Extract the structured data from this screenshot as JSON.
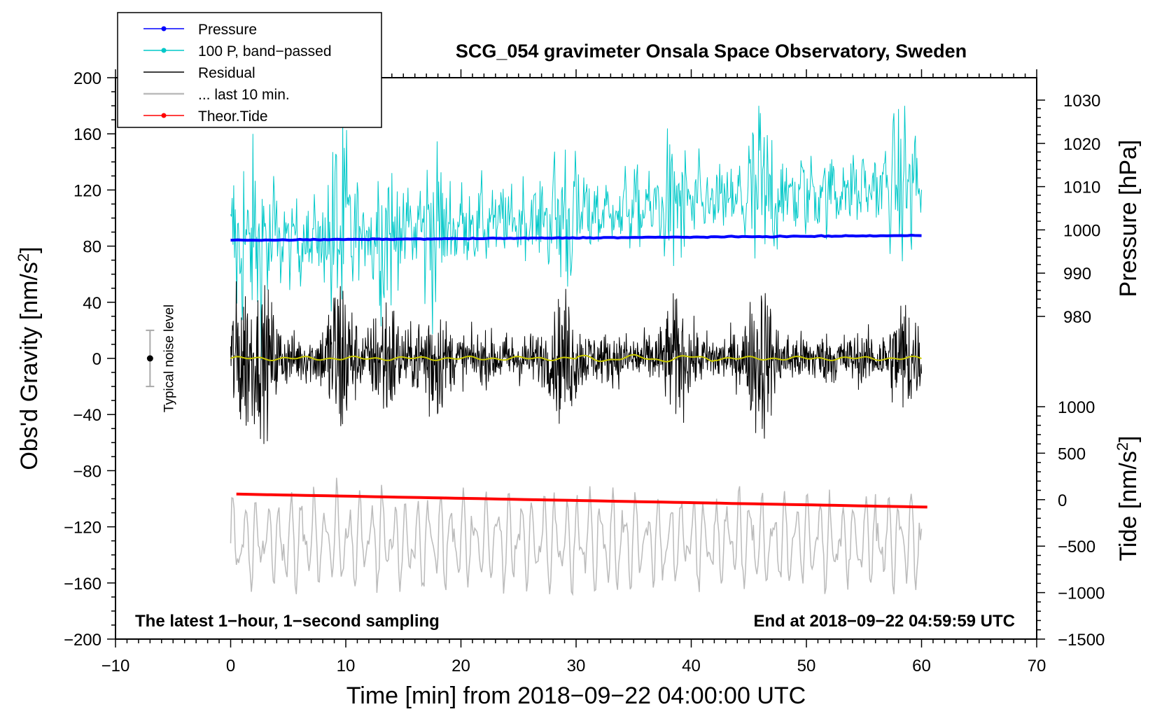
{
  "chart_data": {
    "type": "line",
    "title": "SCG_054 gravimeter Onsala Space Observatory, Sweden",
    "xlabel": "Time [min] from 2018−09−22 04:00:00 UTC",
    "ylabel_prefix": "Obs'd Gravity [nm/s",
    "ylabel_sup": "2",
    "ylabel_suffix": "]",
    "pressure_label": "Pressure [hPa]",
    "tide_label_prefix": "Tide [nm/s",
    "tide_label_sup": "2",
    "tide_label_suffix": "]",
    "xlim": [
      -10,
      70
    ],
    "ylim": [
      -200,
      200
    ],
    "pressure_lim": [
      980,
      1030
    ],
    "tide_lim": [
      -1500,
      1000
    ],
    "x_ticks": [
      -10,
      0,
      10,
      20,
      30,
      40,
      50,
      60,
      70
    ],
    "x_tick_labels": [
      "−10",
      "0",
      "10",
      "20",
      "30",
      "40",
      "50",
      "60",
      "70"
    ],
    "y_ticks": [
      -200,
      -160,
      -120,
      -80,
      -40,
      0,
      40,
      80,
      120,
      160,
      200
    ],
    "y_tick_labels": [
      "−200",
      "−160",
      "−120",
      "−80",
      "−40",
      "0",
      "40",
      "80",
      "120",
      "160",
      "200"
    ],
    "pressure_ticks": [
      980,
      990,
      1000,
      1010,
      1020,
      1030
    ],
    "pressure_tick_labels": [
      "980",
      "990",
      "1000",
      "1010",
      "1020",
      "1030"
    ],
    "tide_ticks": [
      1000,
      500,
      0,
      -500,
      -1000,
      -1500
    ],
    "tide_tick_labels": [
      "1000",
      "500",
      "0",
      "−500",
      "−1000",
      "−1500"
    ],
    "legend": [
      {
        "label": "Pressure",
        "color": "#0000ff",
        "marker": true
      },
      {
        "label": "100 P, band−passed",
        "color": "#00c8c8",
        "marker": true
      },
      {
        "label": "Residual",
        "color": "#000000",
        "marker": false
      },
      {
        "label": "... last 10 min.",
        "color": "#bbbbbb",
        "marker": false
      },
      {
        "label": "Theor.Tide",
        "color": "#ff0000",
        "marker": true
      }
    ],
    "legend_position": "top-left",
    "noise_label": "Typical noise level",
    "noise_level": {
      "x": -7,
      "center": 0,
      "halfwidth": 20
    },
    "footnote_left": "The latest 1−hour, 1−second sampling",
    "footnote_right": "End at 2018−09−22 04:59:59 UTC",
    "series": [
      {
        "name": "Pressure",
        "axis": "pressure",
        "color": "#0000ff",
        "x_range": [
          0,
          60
        ],
        "start": 997.6,
        "end": 998.7
      },
      {
        "name": "100 P, band−passed",
        "axis": "gravity",
        "color": "#00c8c8",
        "x_range": [
          0,
          60
        ],
        "baseline_start": 80,
        "baseline_end": 125,
        "amplitude": 35
      },
      {
        "name": "Residual",
        "axis": "gravity",
        "color": "#000000",
        "x_range": [
          0,
          60
        ],
        "baseline": 0,
        "amplitude": 30
      },
      {
        "name": "smoothed residual",
        "axis": "gravity",
        "color": "#c8c800",
        "x_range": [
          0,
          60
        ],
        "baseline": 0,
        "amplitude": 2
      },
      {
        "name": "... last 10 min.",
        "axis": "gravity",
        "color": "#bbbbbb",
        "x_range": [
          0,
          60
        ],
        "baseline": -130,
        "amplitude": 25
      },
      {
        "name": "Theor.Tide",
        "axis": "tide",
        "color": "#ff0000",
        "x_range": [
          0.5,
          60.5
        ],
        "start": 60,
        "end": -80
      }
    ]
  }
}
